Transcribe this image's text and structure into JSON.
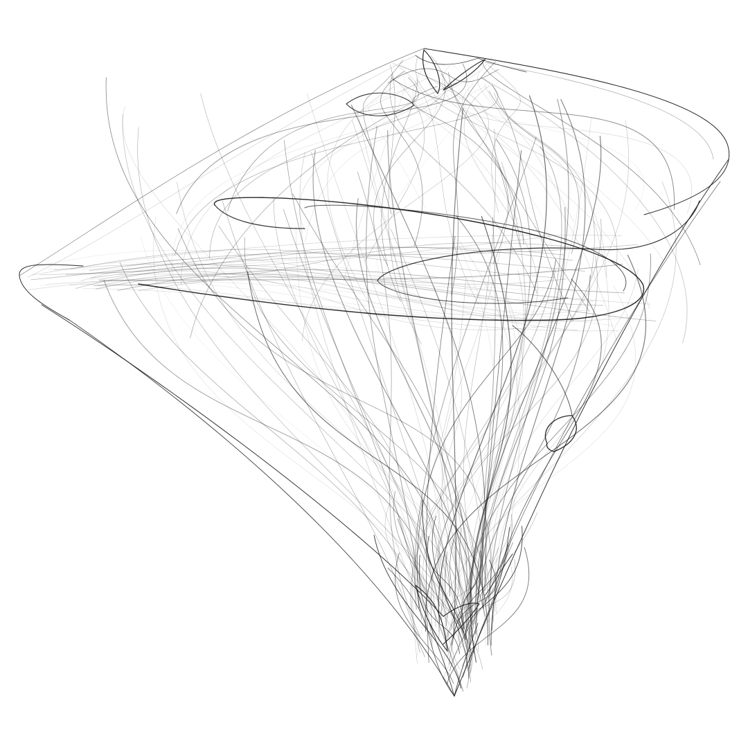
{
  "colors": {
    "background": "#ffffff",
    "ink": "#111111"
  }
}
